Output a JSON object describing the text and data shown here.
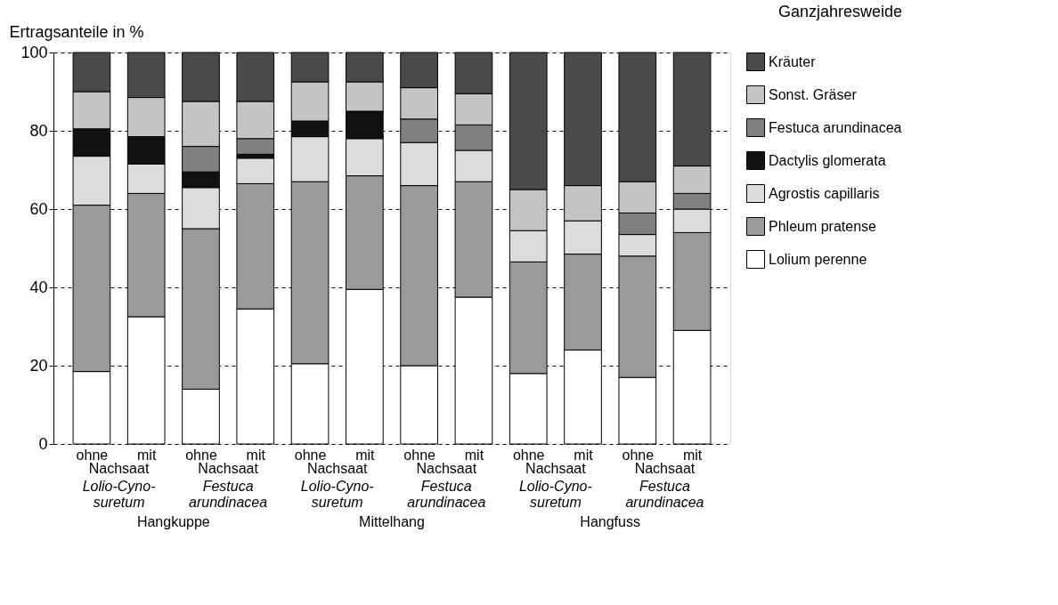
{
  "chart_data": {
    "type": "bar",
    "stacked": true,
    "title": "Ganzjahresweide",
    "ylabel": "Ertragsanteile in %",
    "categories": [
      "ohne",
      "mit",
      "ohne",
      "mit",
      "ohne",
      "mit",
      "ohne",
      "mit",
      "ohne",
      "mit",
      "ohne",
      "mit"
    ],
    "series": [
      {
        "name": "Lolium perenne",
        "color": "#ffffff",
        "values": [
          18.5,
          32.5,
          14,
          34.5,
          20.5,
          39.5,
          20,
          37.5,
          18,
          24,
          17,
          29
        ]
      },
      {
        "name": "Phleum pratense",
        "color": "#9a9a9a",
        "values": [
          42.5,
          31.5,
          41,
          32,
          46.5,
          29,
          46,
          29.5,
          28.5,
          24.5,
          31,
          25
        ]
      },
      {
        "name": "Agrostis capillaris",
        "color": "#dcdcdc",
        "values": [
          12.5,
          7.5,
          10.5,
          6.5,
          11.5,
          9.5,
          11,
          8,
          8,
          8.5,
          5.5,
          6
        ]
      },
      {
        "name": "Dactylis glomerata",
        "color": "#111111",
        "values": [
          7,
          7,
          4,
          1,
          4,
          7,
          0,
          0,
          0,
          0,
          0,
          0
        ]
      },
      {
        "name": "Festuca arundinacea",
        "color": "#808080",
        "values": [
          0,
          0,
          6.5,
          4,
          0,
          0,
          6,
          6.5,
          0,
          0,
          5.5,
          4
        ]
      },
      {
        "name": "Sonst. Gräser",
        "color": "#c4c4c4",
        "values": [
          9.5,
          10,
          11.5,
          9.5,
          10,
          7.5,
          8,
          8,
          10.5,
          9,
          8,
          7
        ]
      },
      {
        "name": "Kräuter",
        "color": "#4a4a4a",
        "values": [
          10,
          11.5,
          12.5,
          12.5,
          7.5,
          7.5,
          9,
          10.5,
          35,
          34,
          33,
          29
        ]
      }
    ],
    "ylim": [
      0,
      100
    ],
    "yticks": [
      0,
      20,
      40,
      60,
      80,
      100
    ],
    "grid": "y",
    "legend": "right",
    "annotations": [
      "Nachsaat",
      "Nachsaat",
      "Nachsaat",
      "Nachsaat",
      "Nachsaat",
      "Nachsaat",
      "Lolio-Cyno-\nsuretum",
      "Festuca\narundinacea",
      "Lolio-Cyno-\nsuretum",
      "Festuca\narundinacea",
      "Lolio-Cyno-\nsuretum",
      "Festuca\narundinacea",
      "Hangkuppe",
      "Mittelhang",
      "Hangfuss"
    ]
  }
}
